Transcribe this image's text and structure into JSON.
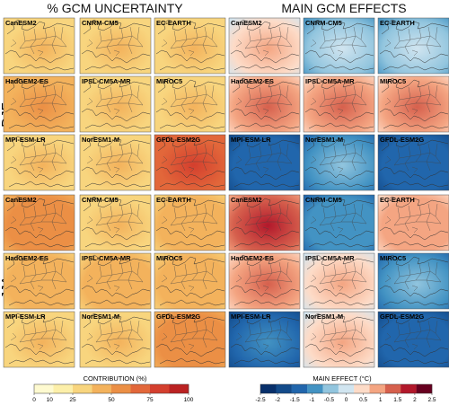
{
  "titles": {
    "left": "% GCM UNCERTAINTY",
    "right": "MAIN GCM EFFECTS"
  },
  "seasons": [
    "DJF",
    "JJA"
  ],
  "models": [
    [
      "CanESM2",
      "CNRM-CM5",
      "EC-EARTH"
    ],
    [
      "HadGEM2-ES",
      "IPSL-CM5A-MR",
      "MIROC5"
    ],
    [
      "MPI-ESM-LR",
      "NorESM1-M",
      "GFDL-ESM2G"
    ]
  ],
  "colorbars": {
    "left": {
      "label": "CONTRIBUTION (%)",
      "ticks": [
        "0",
        "10",
        "25",
        "50",
        "75",
        "100"
      ],
      "colors": [
        "#fefad0",
        "#fcefa9",
        "#f8d57e",
        "#f3b25c",
        "#eb8f45",
        "#e2673a",
        "#d43f2e",
        "#bb2222"
      ]
    },
    "right": {
      "label": "MAIN EFFECT (°C)",
      "ticks": [
        "-2.5",
        "-2",
        "-1.5",
        "-1",
        "-0.5",
        "0",
        "0.5",
        "1",
        "1.5",
        "2",
        "2.5"
      ],
      "colors": [
        "#08306b",
        "#134b8a",
        "#2166ac",
        "#4393c3",
        "#92c5de",
        "#d1e5f0",
        "#fddbc7",
        "#f4a582",
        "#d6604d",
        "#b2182b",
        "#67001f"
      ]
    }
  },
  "panels": {
    "left": {
      "DJF": [
        [
          0.3,
          0.3,
          0.3
        ],
        [
          0.45,
          0.3,
          0.35
        ],
        [
          0.35,
          0.35,
          0.75
        ]
      ],
      "JJA": [
        [
          0.5,
          0.35,
          0.4
        ],
        [
          0.38,
          0.38,
          0.38
        ],
        [
          0.35,
          0.35,
          0.5
        ]
      ]
    },
    "right": {
      "DJF": [
        [
          0.62,
          0.4,
          0.38
        ],
        [
          0.72,
          0.68,
          0.7
        ],
        [
          0.15,
          0.3,
          0.15
        ]
      ],
      "JJA": [
        [
          0.82,
          0.25,
          0.65
        ],
        [
          0.7,
          0.6,
          0.3
        ],
        [
          0.2,
          0.6,
          0.15
        ]
      ]
    }
  }
}
